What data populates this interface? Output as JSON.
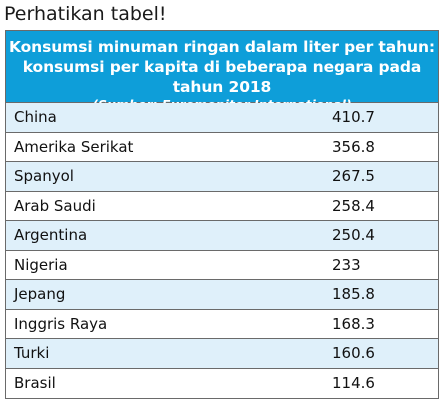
{
  "intro": "Perhatikan tabel!",
  "table": {
    "title_line1": "Konsumsi minuman ringan dalam liter per tahun:",
    "title_line2": "konsumsi per kapita di beberapa negara pada tahun 2018",
    "source": "(Sumber: Euromonitor International)",
    "header_color": "#0e9ed9",
    "alt_row_color": "#dff0fa",
    "rows": [
      {
        "country": "China",
        "value": "410.7"
      },
      {
        "country": "Amerika Serikat",
        "value": "356.8"
      },
      {
        "country": "Spanyol",
        "value": "267.5"
      },
      {
        "country": "Arab Saudi",
        "value": "258.4"
      },
      {
        "country": "Argentina",
        "value": "250.4"
      },
      {
        "country": "Nigeria",
        "value": "233"
      },
      {
        "country": "Jepang",
        "value": "185.8"
      },
      {
        "country": "Inggris Raya",
        "value": "168.3"
      },
      {
        "country": "Turki",
        "value": "160.6"
      },
      {
        "country": "Brasil",
        "value": "114.6"
      }
    ]
  }
}
